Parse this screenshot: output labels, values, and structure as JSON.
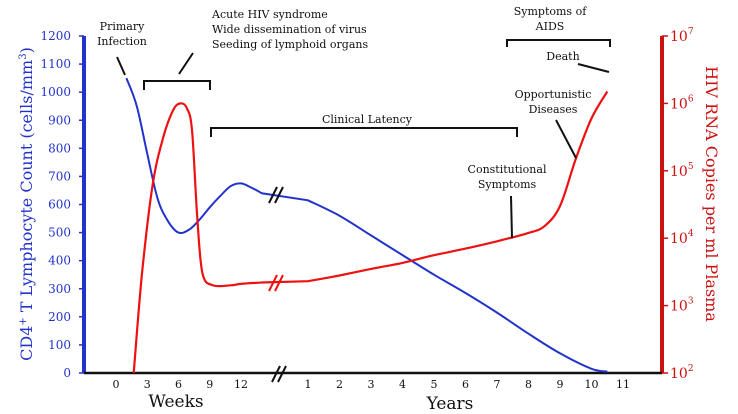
{
  "chart_data": {
    "type": "line",
    "left_axis": {
      "label_prefix": "CD4",
      "label_sup": "+",
      "label_suffix": " T Lymphocyte Count (cells/mm",
      "label_unit_sup": "3",
      "label_end": ")",
      "color": "#2233cc",
      "range": [
        0,
        1200
      ],
      "ticks": [
        0,
        100,
        200,
        300,
        400,
        500,
        600,
        700,
        800,
        900,
        1000,
        1100,
        1200
      ]
    },
    "right_axis": {
      "label": "HIV RNA Copies per ml Plasma",
      "color": "#cc1111",
      "scale": "log",
      "range_exponent": [
        2,
        7
      ],
      "ticks": [
        {
          "base": "10",
          "exp": "2"
        },
        {
          "base": "10",
          "exp": "3"
        },
        {
          "base": "10",
          "exp": "4"
        },
        {
          "base": "10",
          "exp": "5"
        },
        {
          "base": "10",
          "exp": "6"
        },
        {
          "base": "10",
          "exp": "7"
        }
      ]
    },
    "x_axis": {
      "weeks_label": "Weeks",
      "years_label": "Years",
      "weeks_ticks": [
        "0",
        "3",
        "6",
        "9",
        "12"
      ],
      "years_ticks": [
        "1",
        "2",
        "3",
        "4",
        "5",
        "6",
        "7",
        "8",
        "9",
        "10",
        "11"
      ]
    },
    "series": [
      {
        "name": "CD4+ T Lymphocyte Count",
        "axis": "left",
        "color": "#2233cc",
        "points_weeks": [
          [
            1,
            1050
          ],
          [
            2,
            950
          ],
          [
            3,
            780
          ],
          [
            4,
            620
          ],
          [
            5,
            540
          ],
          [
            6,
            500
          ],
          [
            7,
            510
          ],
          [
            8,
            545
          ],
          [
            9,
            590
          ],
          [
            10,
            630
          ],
          [
            11,
            665
          ],
          [
            12,
            675
          ],
          [
            13,
            660
          ],
          [
            14,
            640
          ]
        ],
        "points_years": [
          [
            1,
            615
          ],
          [
            2,
            560
          ],
          [
            3,
            490
          ],
          [
            4,
            420
          ],
          [
            5,
            350
          ],
          [
            6,
            285
          ],
          [
            7,
            215
          ],
          [
            8,
            140
          ],
          [
            9,
            70
          ],
          [
            10,
            15
          ],
          [
            10.5,
            5
          ]
        ]
      },
      {
        "name": "HIV RNA Copies per ml Plasma",
        "axis": "right",
        "color": "#ee1111",
        "points_weeks": [
          [
            1.7,
            100
          ],
          [
            2.5,
            3000
          ],
          [
            3.5,
            60000
          ],
          [
            4.5,
            300000
          ],
          [
            5.5,
            800000
          ],
          [
            6.2,
            1000000
          ],
          [
            6.8,
            850000
          ],
          [
            7.3,
            400000
          ],
          [
            7.8,
            20000
          ],
          [
            8.3,
            3000
          ],
          [
            9.3,
            2000
          ],
          [
            11,
            2000
          ],
          [
            12,
            2100
          ],
          [
            14,
            2200
          ]
        ],
        "points_years": [
          [
            1,
            2300
          ],
          [
            2,
            2800
          ],
          [
            3,
            3500
          ],
          [
            4,
            4300
          ],
          [
            5,
            5600
          ],
          [
            6,
            7000
          ],
          [
            7,
            9000
          ],
          [
            8,
            12000
          ],
          [
            8.5,
            15000
          ],
          [
            9,
            30000
          ],
          [
            9.5,
            150000
          ],
          [
            10,
            600000
          ],
          [
            10.5,
            1500000
          ]
        ]
      }
    ],
    "annotations": {
      "primary": [
        "Primary",
        "Infection"
      ],
      "acute": [
        "Acute HIV syndrome",
        "Wide dissemination of virus",
        "Seeding of lymphoid organs"
      ],
      "latency": "Clinical Latency",
      "symptoms_aids": [
        "Symptoms of",
        "AIDS"
      ],
      "death": "Death",
      "opportunistic": [
        "Opportunistic",
        "Diseases"
      ],
      "constitutional": [
        "Constitutional",
        "Symptoms"
      ]
    }
  }
}
